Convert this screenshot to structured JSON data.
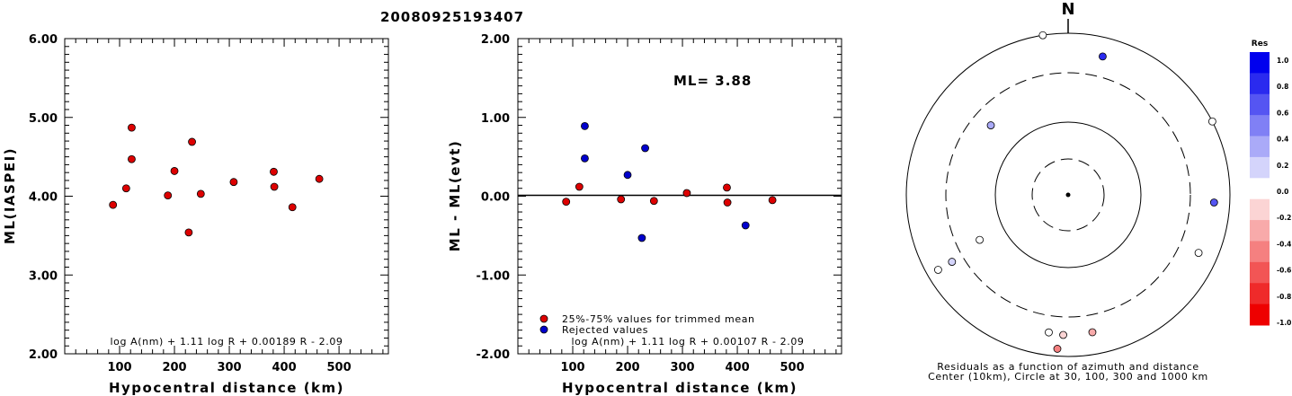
{
  "title": "20080925193407",
  "chart_data": [
    {
      "type": "scatter",
      "xlabel": "Hypocentral distance (km)",
      "ylabel": "ML(IASPEI)",
      "xlim": [
        0,
        590
      ],
      "ylim": [
        2.0,
        6.0
      ],
      "xticks": [
        "100",
        "200",
        "300",
        "400",
        "500"
      ],
      "yticks": [
        "2.00",
        "3.00",
        "4.00",
        "5.00",
        "6.00"
      ],
      "formula": "log A(nm) + 1.11 log R + 0.00189 R - 2.09",
      "series": [
        {
          "color": "#dd0000",
          "points": [
            [
              88,
              3.89
            ],
            [
              112,
              4.1
            ],
            [
              122,
              4.87
            ],
            [
              122,
              4.47
            ],
            [
              188,
              4.01
            ],
            [
              200,
              4.32
            ],
            [
              226,
              3.54
            ],
            [
              232,
              4.69
            ],
            [
              248,
              4.03
            ],
            [
              308,
              4.18
            ],
            [
              381,
              4.31
            ],
            [
              382,
              4.12
            ],
            [
              415,
              3.86
            ],
            [
              464,
              4.22
            ]
          ]
        }
      ]
    },
    {
      "type": "scatter",
      "xlabel": "Hypocentral distance (km)",
      "ylabel": "ML - ML(evt)",
      "xlim": [
        0,
        590
      ],
      "ylim": [
        -2.0,
        2.0
      ],
      "xticks": [
        "100",
        "200",
        "300",
        "400",
        "500"
      ],
      "yticks": [
        "-2.00",
        "-1.00",
        "0.00",
        "1.00",
        "2.00"
      ],
      "annotation": "ML= 3.88",
      "formula": "log A(nm) + 1.11 log R + 0.00107 R - 2.09",
      "reference_line": 0.0,
      "series": [
        {
          "name": "25%-75% values for trimmed mean",
          "color": "#dd0000",
          "points": [
            [
              88,
              -0.07
            ],
            [
              112,
              0.12
            ],
            [
              188,
              -0.04
            ],
            [
              248,
              -0.06
            ],
            [
              308,
              0.04
            ],
            [
              381,
              0.11
            ],
            [
              382,
              -0.08
            ],
            [
              464,
              -0.05
            ]
          ]
        },
        {
          "name": "Rejected values",
          "color": "#0000cc",
          "points": [
            [
              122,
              0.89
            ],
            [
              122,
              0.48
            ],
            [
              200,
              0.27
            ],
            [
              226,
              -0.53
            ],
            [
              232,
              0.61
            ],
            [
              415,
              -0.37
            ]
          ]
        }
      ]
    },
    {
      "type": "polar_scatter",
      "north_label": "N",
      "caption_line1": "Residuals as a function of azimuth and distance",
      "caption_line2": "Center (10km), Circle at 30, 100, 300 and 1000 km",
      "rings_km": [
        30,
        100,
        300,
        1000
      ],
      "colorbar": {
        "title": "Res",
        "ticks": [
          "1.0",
          "0.8",
          "0.6",
          "0.4",
          "0.2",
          "0.0",
          "-0.2",
          "-0.4",
          "-0.6",
          "-0.8",
          "-1.0"
        ],
        "colors": [
          "#0000ee",
          "#2a2aef",
          "#5555f2",
          "#8080f5",
          "#aaaaf8",
          "#d4d4fb",
          "#ffffff",
          "#fbd4d4",
          "#f8aaaa",
          "#f58080",
          "#f25555",
          "#ef2a2a",
          "#ee0000"
        ]
      },
      "stations": [
        {
          "azimuth": 351,
          "distance_km": 1000,
          "residual": -0.05
        },
        {
          "azimuth": 14,
          "distance_km": 560,
          "residual": 0.89
        },
        {
          "azimuth": 63,
          "distance_km": 1000,
          "residual": 0.08
        },
        {
          "azimuth": 93,
          "distance_km": 620,
          "residual": 0.61
        },
        {
          "azimuth": 312,
          "distance_km": 200,
          "residual": 0.27
        },
        {
          "azimuth": 243,
          "distance_km": 180,
          "residual": -0.07
        },
        {
          "azimuth": 114,
          "distance_km": 560,
          "residual": -0.04
        },
        {
          "azimuth": 240,
          "distance_km": 430,
          "residual": 0.2
        },
        {
          "azimuth": 240,
          "distance_km": 700,
          "residual": -0.04
        },
        {
          "azimuth": 188,
          "distance_km": 500,
          "residual": -0.05
        },
        {
          "azimuth": 182,
          "distance_km": 520,
          "residual": -0.12
        },
        {
          "azimuth": 170,
          "distance_km": 510,
          "residual": -0.37
        },
        {
          "azimuth": 184,
          "distance_km": 800,
          "residual": -0.53
        }
      ]
    }
  ]
}
